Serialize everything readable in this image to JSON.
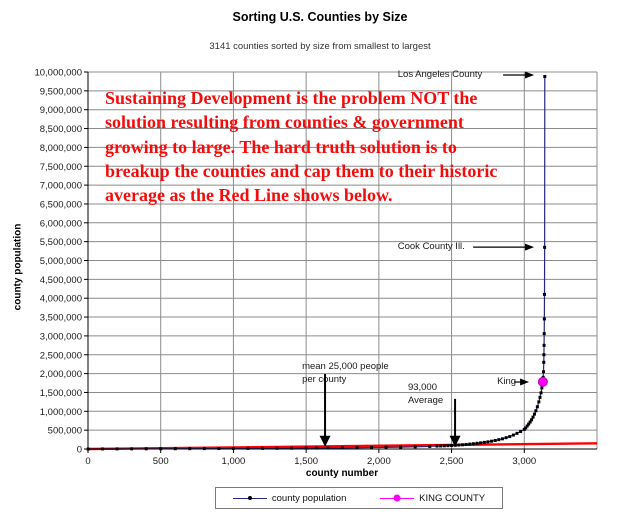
{
  "chart_data": {
    "type": "scatter",
    "title": "Sorting U.S. Counties by Size",
    "subtitle": "3141 counties sorted by size from smallest to largest",
    "xlabel": "county number",
    "ylabel": "county population",
    "xlim": [
      0,
      3500
    ],
    "ylim": [
      0,
      10000000
    ],
    "x_ticks": [
      0,
      500,
      1000,
      1500,
      2000,
      2500,
      3000
    ],
    "y_tick_step": 500000,
    "grid": true,
    "grid_color": "#8c8c8c",
    "axis_color": "#000000",
    "legend_position": "bottom",
    "series": [
      {
        "name": "county population",
        "line_color": "#26267f",
        "marker_color": "#000000",
        "points": [
          [
            1,
            70
          ],
          [
            100,
            1800
          ],
          [
            200,
            3000
          ],
          [
            300,
            4200
          ],
          [
            400,
            5400
          ],
          [
            500,
            6500
          ],
          [
            600,
            7700
          ],
          [
            700,
            9000
          ],
          [
            800,
            10400
          ],
          [
            900,
            11900
          ],
          [
            1000,
            13500
          ],
          [
            1100,
            15000
          ],
          [
            1200,
            16800
          ],
          [
            1300,
            18700
          ],
          [
            1400,
            20800
          ],
          [
            1500,
            23000
          ],
          [
            1570,
            25000
          ],
          [
            1650,
            27000
          ],
          [
            1750,
            30000
          ],
          [
            1850,
            33500
          ],
          [
            1950,
            38000
          ],
          [
            2050,
            43500
          ],
          [
            2150,
            50000
          ],
          [
            2250,
            58000
          ],
          [
            2350,
            68000
          ],
          [
            2400,
            78000
          ],
          [
            2425,
            81500
          ],
          [
            2450,
            85000
          ],
          [
            2475,
            89000
          ],
          [
            2500,
            93000
          ],
          [
            2525,
            99000
          ],
          [
            2550,
            105000
          ],
          [
            2575,
            112000
          ],
          [
            2600,
            120000
          ],
          [
            2625,
            130000
          ],
          [
            2650,
            140000
          ],
          [
            2675,
            151000
          ],
          [
            2700,
            163000
          ],
          [
            2725,
            176000
          ],
          [
            2750,
            190000
          ],
          [
            2775,
            207000
          ],
          [
            2800,
            225000
          ],
          [
            2825,
            247000
          ],
          [
            2850,
            270000
          ],
          [
            2875,
            300000
          ],
          [
            2900,
            330000
          ],
          [
            2925,
            370000
          ],
          [
            2950,
            415000
          ],
          [
            2975,
            465000
          ],
          [
            3000,
            520000
          ],
          [
            3010,
            560000
          ],
          [
            3020,
            610000
          ],
          [
            3030,
            660000
          ],
          [
            3040,
            715000
          ],
          [
            3050,
            775000
          ],
          [
            3060,
            845000
          ],
          [
            3070,
            925000
          ],
          [
            3080,
            1015000
          ],
          [
            3090,
            1120000
          ],
          [
            3100,
            1250000
          ],
          [
            3108,
            1370000
          ],
          [
            3115,
            1490000
          ],
          [
            3121,
            1620000
          ],
          [
            3126,
            1720000
          ],
          [
            3128,
            1780000
          ],
          [
            3130,
            1900000
          ],
          [
            3132,
            2050000
          ],
          [
            3134,
            2300000
          ],
          [
            3135,
            2500000
          ],
          [
            3136,
            2750000
          ],
          [
            3137,
            3060000
          ],
          [
            3138,
            3450000
          ],
          [
            3139,
            4100000
          ],
          [
            3140,
            5350000
          ],
          [
            3141,
            9880000
          ]
        ]
      },
      {
        "name": "KING COUNTY",
        "line_color": "#ff00ff",
        "marker_color": "#ff00ff",
        "points": [
          [
            3128,
            1780000
          ]
        ]
      }
    ],
    "cap_line": {
      "color": "#ff0000",
      "points": [
        [
          0,
          0
        ],
        [
          3500,
          150000
        ]
      ]
    },
    "annotations": [
      {
        "id": "los-angeles-county",
        "text": "Los Angeles County",
        "tx": 2130,
        "ty": 10080000,
        "arrow": {
          "dir": "right",
          "x1": 2854,
          "y1": 9920000,
          "x2": 3067,
          "y2": 9920000
        }
      },
      {
        "id": "cook-county",
        "text": "Cook County Ill.",
        "tx": 2130,
        "ty": 5520000,
        "arrow": {
          "dir": "right",
          "x1": 2648,
          "y1": 5355000,
          "x2": 3067,
          "y2": 5355000
        }
      },
      {
        "id": "king-county",
        "text": "King",
        "tx": 2813,
        "ty": 1940000,
        "arrow": {
          "dir": "right",
          "x1": 2930,
          "y1": 1777000,
          "x2": 3033,
          "y2": 1777000
        }
      },
      {
        "id": "mean-25000",
        "text": "mean 25,000 people\nper county",
        "tx": 1472,
        "ty": 2330000,
        "arrow": {
          "dir": "down",
          "x1": 1630,
          "y1": 1990000,
          "x2": 1630,
          "y2": 60000
        }
      },
      {
        "id": "93000-average",
        "text": "93,000\nAverage",
        "tx": 2200,
        "ty": 1780000,
        "arrow": {
          "dir": "down",
          "x1": 2524,
          "y1": 1330000,
          "x2": 2524,
          "y2": 60000
        }
      }
    ],
    "note": {
      "color": "#f20d0d",
      "lines": [
        "Sustaining Development is the problem NOT the",
        "solution resulting from counties & government",
        "growing to large.  The hard truth solution is to",
        "breakup the counties and cap them to their historic",
        "average as the Red Line shows below."
      ]
    },
    "legend": {
      "entries": [
        "county population",
        "KING COUNTY"
      ]
    }
  }
}
